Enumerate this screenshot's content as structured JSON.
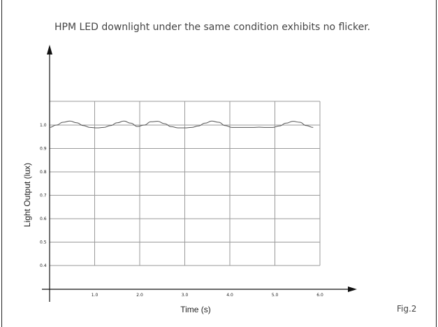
{
  "figure_label": "Fig.2",
  "chart_data": {
    "type": "line",
    "title": "HPM LED downlight under the same condition exhibits no flicker.",
    "xlabel": "Time (s)",
    "ylabel": "Light Output (lux)",
    "xlim": [
      0,
      7.0
    ],
    "ylim": [
      0.3,
      1.1
    ],
    "x_ticks": [
      1.0,
      2.0,
      3.0,
      4.0,
      5.0,
      6.0
    ],
    "x_tick_labels": [
      "1.0",
      "2.0",
      "3.0",
      "4.0",
      "5.0",
      "6.0"
    ],
    "y_ticks": [
      0.4,
      0.5,
      0.6,
      0.7,
      0.8,
      0.9,
      1.0
    ],
    "y_tick_labels": [
      "0.4",
      "0.5",
      "0.6",
      "0.7",
      "0.8",
      "0.9",
      "1.0"
    ],
    "grid": true,
    "line_color": "#555555",
    "grid_color": "#9a9a9a",
    "series": [
      {
        "values_x": [
          0.0,
          0.15,
          0.3,
          0.45,
          0.6,
          0.75,
          0.9,
          1.05,
          1.2,
          1.35,
          1.5,
          1.65,
          1.8,
          1.95,
          2.1,
          2.25,
          2.4,
          2.55,
          2.7,
          2.85,
          3.0,
          3.15,
          3.3,
          3.45,
          3.6,
          3.75,
          3.9,
          4.05,
          4.2,
          4.35,
          4.5,
          4.65,
          4.8,
          4.95,
          5.1,
          5.25,
          5.4,
          5.55,
          5.7,
          5.85
        ],
        "values_y": [
          0.99,
          1.0,
          1.012,
          1.017,
          1.01,
          0.998,
          0.99,
          0.988,
          0.99,
          0.998,
          1.01,
          1.017,
          1.008,
          0.994,
          1.0,
          1.014,
          1.016,
          1.006,
          0.993,
          0.988,
          0.988,
          0.99,
          0.996,
          1.008,
          1.017,
          1.012,
          0.998,
          0.99,
          0.99,
          0.99,
          0.99,
          0.991,
          0.99,
          0.99,
          0.996,
          1.008,
          1.016,
          1.012,
          0.998,
          0.99
        ]
      }
    ]
  }
}
